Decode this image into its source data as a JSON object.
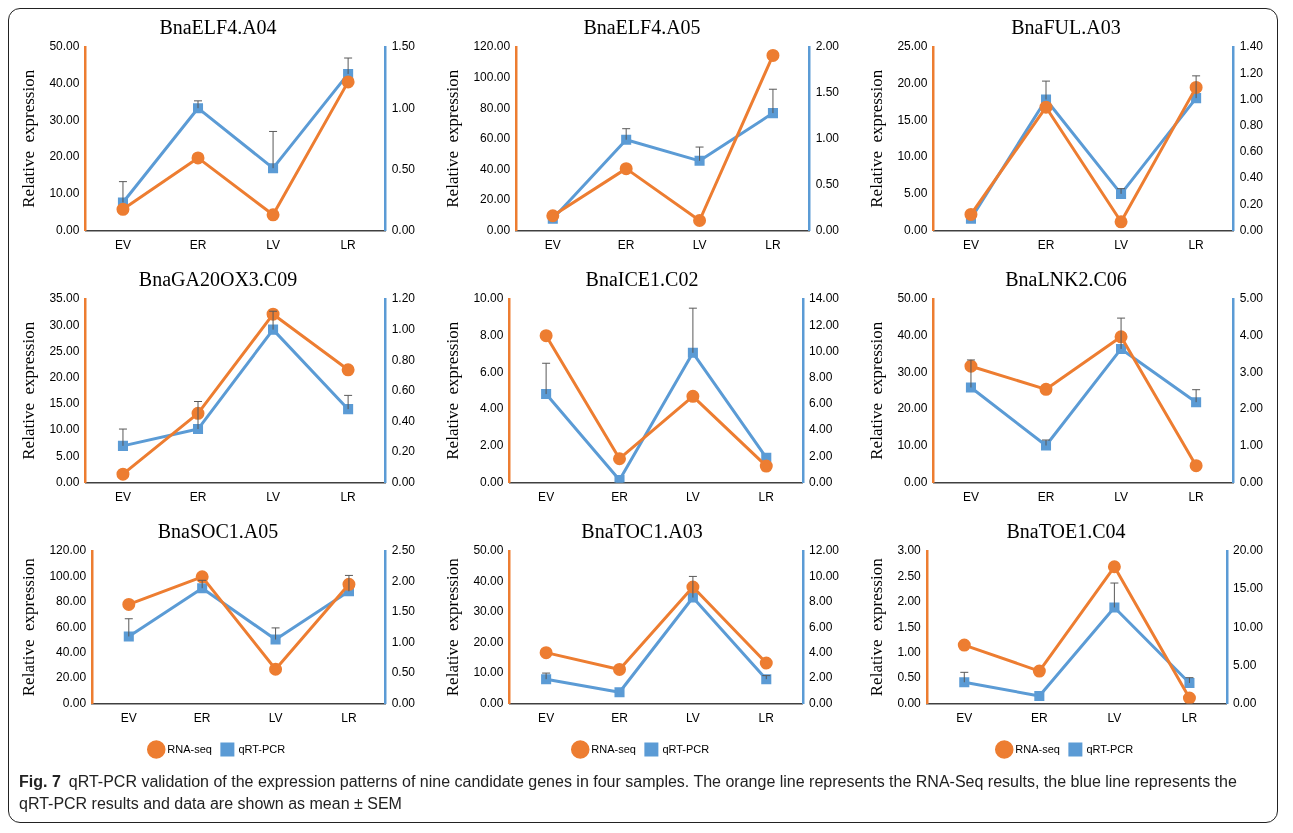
{
  "chart_data": [
    {
      "type": "line",
      "title": "BnaELF4.A04",
      "ylabel": "Relative  expression",
      "categories": [
        "EV",
        "ER",
        "LV",
        "LR"
      ],
      "series": [
        {
          "color": "#ed7d31",
          "marker": "circle",
          "values": [
            5.8,
            19.8,
            4.3,
            40.5
          ]
        },
        {
          "color": "#5b9bd5",
          "marker": "square",
          "axis": "y2",
          "values": [
            0.23,
            1.0,
            0.51,
            1.28
          ],
          "errors": [
            [
              0.23,
              0.4
            ],
            [
              1.0,
              1.06
            ],
            [
              0.51,
              0.81
            ],
            [
              1.28,
              1.41
            ]
          ]
        }
      ],
      "ylim": [
        0,
        50
      ],
      "yticks": [
        {
          "value": 0,
          "label": "0.00"
        },
        {
          "value": 10,
          "label": "10.00"
        },
        {
          "value": 20,
          "label": "20.00"
        },
        {
          "value": 30,
          "label": "30.00"
        },
        {
          "value": 40,
          "label": "40.00"
        },
        {
          "value": 50,
          "label": "50.00"
        }
      ],
      "y2lim": [
        0,
        1.5
      ],
      "y2ticks": [
        {
          "value": 0,
          "label": "0.00"
        },
        {
          "value": 0.5,
          "label": "0.50"
        },
        {
          "value": 1,
          "label": "1.00"
        },
        {
          "value": 1.5,
          "label": "1.50"
        }
      ]
    },
    {
      "type": "line",
      "title": "BnaELF4.A05",
      "ylabel": "Relative  expression",
      "categories": [
        "EV",
        "ER",
        "LV",
        "LR"
      ],
      "series": [
        {
          "color": "#ed7d31",
          "marker": "circle",
          "values": [
            9.7,
            40.5,
            6.6,
            114.5
          ]
        },
        {
          "color": "#5b9bd5",
          "marker": "square",
          "axis": "y2",
          "values": [
            0.13,
            0.99,
            0.76,
            1.28
          ],
          "errors": [
            null,
            [
              0.99,
              1.11
            ],
            [
              0.76,
              0.91
            ],
            [
              1.28,
              1.54
            ]
          ]
        }
      ],
      "ylim": [
        0,
        120
      ],
      "yticks": [
        {
          "value": 0,
          "label": "0.00"
        },
        {
          "value": 20,
          "label": "20.00"
        },
        {
          "value": 40,
          "label": "40.00"
        },
        {
          "value": 60,
          "label": "60.00"
        },
        {
          "value": 80,
          "label": "80.00"
        },
        {
          "value": 100,
          "label": "100.00"
        },
        {
          "value": 120,
          "label": "120.00"
        }
      ],
      "y2lim": [
        0,
        2
      ],
      "y2ticks": [
        {
          "value": 0,
          "label": "0.00"
        },
        {
          "value": 0.5,
          "label": "0.50"
        },
        {
          "value": 1,
          "label": "1.00"
        },
        {
          "value": 1.5,
          "label": "1.50"
        },
        {
          "value": 2,
          "label": "2.00"
        }
      ]
    },
    {
      "type": "line",
      "title": "BnaFUL.A03",
      "ylabel": "Relative  expression",
      "categories": [
        "EV",
        "ER",
        "LV",
        "LR"
      ],
      "series": [
        {
          "color": "#ed7d31",
          "marker": "circle",
          "values": [
            2.2,
            16.8,
            1.2,
            19.5
          ]
        },
        {
          "color": "#5b9bd5",
          "marker": "square",
          "axis": "y2",
          "values": [
            0.09,
            1.0,
            0.28,
            1.01
          ],
          "errors": [
            null,
            [
              1.0,
              1.14
            ],
            [
              0.28,
              0.32
            ],
            [
              1.01,
              1.18
            ]
          ]
        }
      ],
      "ylim": [
        0,
        25
      ],
      "yticks": [
        {
          "value": 0,
          "label": "0.00"
        },
        {
          "value": 5,
          "label": "5.00"
        },
        {
          "value": 10,
          "label": "10.00"
        },
        {
          "value": 15,
          "label": "15.00"
        },
        {
          "value": 20,
          "label": "20.00"
        },
        {
          "value": 25,
          "label": "25.00"
        }
      ],
      "y2lim": [
        0,
        1.4
      ],
      "y2ticks": [
        {
          "value": 0,
          "label": "0.00"
        },
        {
          "value": 0.2,
          "label": "0.20"
        },
        {
          "value": 0.4,
          "label": "0.40"
        },
        {
          "value": 0.6,
          "label": "0.60"
        },
        {
          "value": 0.8,
          "label": "0.80"
        },
        {
          "value": 1,
          "label": "1.00"
        },
        {
          "value": 1.2,
          "label": "1.20"
        },
        {
          "value": 1.4,
          "label": "1.40"
        }
      ]
    },
    {
      "type": "line",
      "title": "BnaGA20OX3.C09",
      "ylabel": "Relative  expression",
      "categories": [
        "EV",
        "ER",
        "LV",
        "LR"
      ],
      "series": [
        {
          "color": "#ed7d31",
          "marker": "circle",
          "values": [
            1.6,
            13.2,
            32.1,
            21.5
          ]
        },
        {
          "color": "#5b9bd5",
          "marker": "square",
          "axis": "y2",
          "values": [
            0.24,
            0.35,
            1.0,
            0.48
          ],
          "errors": [
            [
              0.24,
              0.35
            ],
            [
              0.35,
              0.53
            ],
            [
              1.0,
              1.12
            ],
            [
              0.48,
              0.57
            ]
          ]
        }
      ],
      "ylim": [
        0,
        35
      ],
      "yticks": [
        {
          "value": 0,
          "label": "0.00"
        },
        {
          "value": 5,
          "label": "5.00"
        },
        {
          "value": 10,
          "label": "10.00"
        },
        {
          "value": 15,
          "label": "15.00"
        },
        {
          "value": 20,
          "label": "20.00"
        },
        {
          "value": 25,
          "label": "25.00"
        },
        {
          "value": 30,
          "label": "30.00"
        },
        {
          "value": 35,
          "label": "35.00"
        }
      ],
      "y2lim": [
        0,
        1.2
      ],
      "y2ticks": [
        {
          "value": 0,
          "label": "0.00"
        },
        {
          "value": 0.2,
          "label": "0.20"
        },
        {
          "value": 0.4,
          "label": "0.40"
        },
        {
          "value": 0.6,
          "label": "0.60"
        },
        {
          "value": 0.8,
          "label": "0.80"
        },
        {
          "value": 1,
          "label": "1.00"
        },
        {
          "value": 1.2,
          "label": "1.20"
        }
      ]
    },
    {
      "type": "line",
      "title": "BnaICE1.C02",
      "ylabel": "Relative  expression",
      "categories": [
        "EV",
        "ER",
        "LV",
        "LR"
      ],
      "series": [
        {
          "color": "#ed7d31",
          "marker": "circle",
          "values": [
            8.0,
            1.3,
            4.7,
            0.9
          ]
        },
        {
          "color": "#5b9bd5",
          "marker": "square",
          "axis": "y2",
          "values": [
            6.75,
            0.2,
            9.9,
            1.9
          ],
          "errors": [
            [
              6.75,
              9.1
            ],
            null,
            [
              9.9,
              13.3
            ],
            null
          ]
        }
      ],
      "ylim": [
        0,
        10
      ],
      "yticks": [
        {
          "value": 0,
          "label": "0.00"
        },
        {
          "value": 2,
          "label": "2.00"
        },
        {
          "value": 4,
          "label": "4.00"
        },
        {
          "value": 6,
          "label": "6.00"
        },
        {
          "value": 8,
          "label": "8.00"
        },
        {
          "value": 10,
          "label": "10.00"
        }
      ],
      "y2lim": [
        0,
        14
      ],
      "y2ticks": [
        {
          "value": 0,
          "label": "0.00"
        },
        {
          "value": 2,
          "label": "2.00"
        },
        {
          "value": 4,
          "label": "4.00"
        },
        {
          "value": 6,
          "label": "6.00"
        },
        {
          "value": 8,
          "label": "8.00"
        },
        {
          "value": 10,
          "label": "10.00"
        },
        {
          "value": 12,
          "label": "12.00"
        },
        {
          "value": 14,
          "label": "14.00"
        }
      ]
    },
    {
      "type": "line",
      "title": "BnaLNK2.C06",
      "ylabel": "Relative  expression",
      "categories": [
        "EV",
        "ER",
        "LV",
        "LR"
      ],
      "series": [
        {
          "color": "#ed7d31",
          "marker": "circle",
          "values": [
            31.7,
            25.4,
            39.7,
            4.6
          ]
        },
        {
          "color": "#5b9bd5",
          "marker": "square",
          "axis": "y2",
          "values": [
            2.59,
            1.01,
            3.64,
            2.19
          ],
          "errors": [
            [
              2.59,
              3.34
            ],
            [
              1.01,
              1.16
            ],
            [
              3.64,
              4.48
            ],
            [
              2.19,
              2.53
            ]
          ]
        }
      ],
      "ylim": [
        0,
        50
      ],
      "yticks": [
        {
          "value": 0,
          "label": "0.00"
        },
        {
          "value": 10,
          "label": "10.00"
        },
        {
          "value": 20,
          "label": "20.00"
        },
        {
          "value": 30,
          "label": "30.00"
        },
        {
          "value": 40,
          "label": "40.00"
        },
        {
          "value": 50,
          "label": "50.00"
        }
      ],
      "y2lim": [
        0,
        5
      ],
      "y2ticks": [
        {
          "value": 0,
          "label": "0.00"
        },
        {
          "value": 1,
          "label": "1.00"
        },
        {
          "value": 2,
          "label": "2.00"
        },
        {
          "value": 3,
          "label": "3.00"
        },
        {
          "value": 4,
          "label": "4.00"
        },
        {
          "value": 5,
          "label": "5.00"
        }
      ]
    },
    {
      "type": "line",
      "title": "BnaSOC1.A05",
      "ylabel": "Relative  expression",
      "categories": [
        "EV",
        "ER",
        "LV",
        "LR"
      ],
      "legend": "bottom",
      "series": [
        {
          "name": "RNA-seq",
          "color": "#ed7d31",
          "marker": "circle",
          "values": [
            78,
            99.7,
            27,
            93.8
          ]
        },
        {
          "name": "qRT-PCR",
          "color": "#5b9bd5",
          "marker": "square",
          "axis": "y2",
          "values": [
            1.1,
            1.89,
            1.05,
            1.84
          ],
          "errors": [
            [
              1.1,
              1.39
            ],
            [
              1.89,
              2.02
            ],
            [
              1.05,
              1.24
            ],
            [
              1.84,
              2.1
            ]
          ]
        }
      ],
      "ylim": [
        0,
        120
      ],
      "yticks": [
        {
          "value": 0,
          "label": "0.00"
        },
        {
          "value": 20,
          "label": "20.00"
        },
        {
          "value": 40,
          "label": "40.00"
        },
        {
          "value": 60,
          "label": "60.00"
        },
        {
          "value": 80,
          "label": "80.00"
        },
        {
          "value": 100,
          "label": "100.00"
        },
        {
          "value": 120,
          "label": "120.00"
        }
      ],
      "y2lim": [
        0,
        2.5
      ],
      "y2ticks": [
        {
          "value": 0,
          "label": "0.00"
        },
        {
          "value": 0.5,
          "label": "0.50"
        },
        {
          "value": 1,
          "label": "1.00"
        },
        {
          "value": 1.5,
          "label": "1.50"
        },
        {
          "value": 2,
          "label": "2.00"
        },
        {
          "value": 2.5,
          "label": "2.50"
        }
      ]
    },
    {
      "type": "line",
      "title": "BnaTOC1.A03",
      "ylabel": "Relative  expression",
      "categories": [
        "EV",
        "ER",
        "LV",
        "LR"
      ],
      "legend": "bottom",
      "series": [
        {
          "name": "RNA-seq",
          "color": "#ed7d31",
          "marker": "circle",
          "values": [
            16.7,
            11.2,
            38.2,
            13.3
          ]
        },
        {
          "name": "qRT-PCR",
          "color": "#5b9bd5",
          "marker": "square",
          "axis": "y2",
          "values": [
            1.92,
            0.89,
            8.34,
            1.92
          ],
          "errors": [
            [
              1.92,
              2.4
            ],
            null,
            [
              8.34,
              10.0
            ],
            [
              1.92,
              2.2
            ]
          ]
        }
      ],
      "ylim": [
        0,
        50
      ],
      "yticks": [
        {
          "value": 0,
          "label": "0.00"
        },
        {
          "value": 10,
          "label": "10.00"
        },
        {
          "value": 20,
          "label": "20.00"
        },
        {
          "value": 30,
          "label": "30.00"
        },
        {
          "value": 40,
          "label": "40.00"
        },
        {
          "value": 50,
          "label": "50.00"
        }
      ],
      "y2lim": [
        0,
        12
      ],
      "y2ticks": [
        {
          "value": 0,
          "label": "0.00"
        },
        {
          "value": 2,
          "label": "2.00"
        },
        {
          "value": 4,
          "label": "4.00"
        },
        {
          "value": 6,
          "label": "6.00"
        },
        {
          "value": 8,
          "label": "8.00"
        },
        {
          "value": 10,
          "label": "10.00"
        },
        {
          "value": 12,
          "label": "12.00"
        }
      ]
    },
    {
      "type": "line",
      "title": "BnaTOE1.C04",
      "ylabel": "Relative  expression",
      "categories": [
        "EV",
        "ER",
        "LV",
        "LR"
      ],
      "legend": "bottom",
      "series": [
        {
          "name": "RNA-seq",
          "color": "#ed7d31",
          "marker": "circle",
          "values": [
            1.15,
            0.64,
            2.69,
            0.11
          ]
        },
        {
          "name": "qRT-PCR",
          "color": "#5b9bd5",
          "marker": "square",
          "axis": "y2",
          "values": [
            2.8,
            1.0,
            12.6,
            2.7
          ],
          "errors": [
            [
              2.8,
              4.1
            ],
            null,
            [
              12.6,
              15.8
            ],
            [
              2.7,
              3.4
            ]
          ]
        }
      ],
      "ylim": [
        0,
        3
      ],
      "yticks": [
        {
          "value": 0,
          "label": "0.00"
        },
        {
          "value": 0.5,
          "label": "0.50"
        },
        {
          "value": 1,
          "label": "1.00"
        },
        {
          "value": 1.5,
          "label": "1.50"
        },
        {
          "value": 2,
          "label": "2.00"
        },
        {
          "value": 2.5,
          "label": "2.50"
        },
        {
          "value": 3,
          "label": "3.00"
        }
      ],
      "y2lim": [
        0,
        20
      ],
      "y2ticks": [
        {
          "value": 0,
          "label": "0.00"
        },
        {
          "value": 5,
          "label": "5.00"
        },
        {
          "value": 10,
          "label": "10.00"
        },
        {
          "value": 15,
          "label": "15.00"
        },
        {
          "value": 20,
          "label": "20.00"
        }
      ],
      "annotations": [
        "Fig. 7",
        "qRT-PCR validation of the expression patterns of nine candidate genes in four samples. The orange line represents the RNA-Seq results, the blue line represents the qRT-PCR results and data are shown as mean ± SEM"
      ]
    }
  ]
}
